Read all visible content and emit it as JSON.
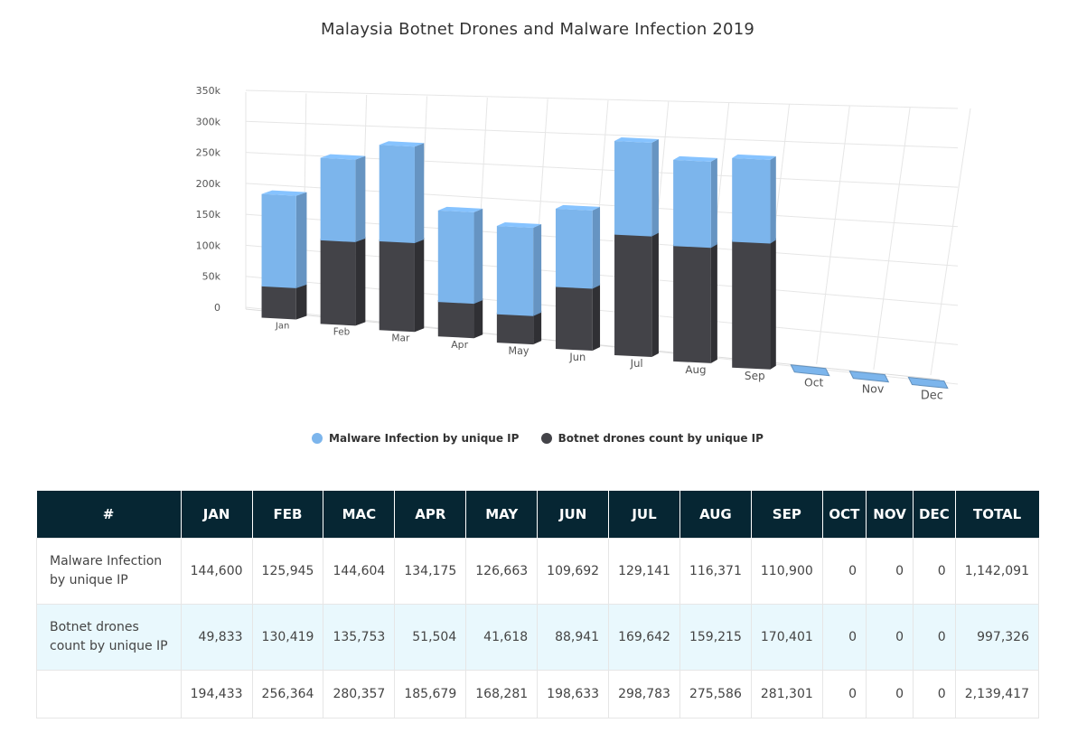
{
  "chart_data": {
    "type": "bar",
    "stacked": true,
    "three_d": true,
    "title": "Malaysia Botnet Drones and Malware Infection 2019",
    "categories": [
      "Jan",
      "Feb",
      "Mar",
      "Apr",
      "May",
      "Jun",
      "Jul",
      "Aug",
      "Sep",
      "Oct",
      "Nov",
      "Dec"
    ],
    "series": [
      {
        "name": "Malware Infection by unique IP",
        "color": "#7cb5ec",
        "values": [
          144600,
          125945,
          144604,
          134175,
          126663,
          109692,
          129141,
          116371,
          110900,
          0,
          0,
          0
        ]
      },
      {
        "name": "Botnet drones count by unique IP",
        "color": "#434348",
        "values": [
          49833,
          130419,
          135753,
          51504,
          41618,
          88941,
          169642,
          159215,
          170401,
          0,
          0,
          0
        ]
      }
    ],
    "yticks": [
      "0",
      "50k",
      "100k",
      "150k",
      "200k",
      "250k",
      "300k",
      "350k"
    ],
    "ylim": [
      0,
      350000
    ],
    "legend_position": "bottom"
  },
  "table": {
    "headers": [
      "#",
      "JAN",
      "FEB",
      "MAC",
      "APR",
      "MAY",
      "JUN",
      "JUL",
      "AUG",
      "SEP",
      "OCT",
      "NOV",
      "DEC",
      "TOTAL"
    ],
    "rows": [
      {
        "label": "Malware Infection by unique IP",
        "values": [
          "144,600",
          "125,945",
          "144,604",
          "134,175",
          "126,663",
          "109,692",
          "129,141",
          "116,371",
          "110,900",
          "0",
          "0",
          "0",
          "1,142,091"
        ]
      },
      {
        "label": "Botnet drones count by unique IP",
        "values": [
          "49,833",
          "130,419",
          "135,753",
          "51,504",
          "41,618",
          "88,941",
          "169,642",
          "159,215",
          "170,401",
          "0",
          "0",
          "0",
          "997,326"
        ]
      },
      {
        "label": "",
        "values": [
          "194,433",
          "256,364",
          "280,357",
          "185,679",
          "168,281",
          "198,633",
          "298,783",
          "275,586",
          "281,301",
          "0",
          "0",
          "0",
          "2,139,417"
        ]
      }
    ]
  }
}
